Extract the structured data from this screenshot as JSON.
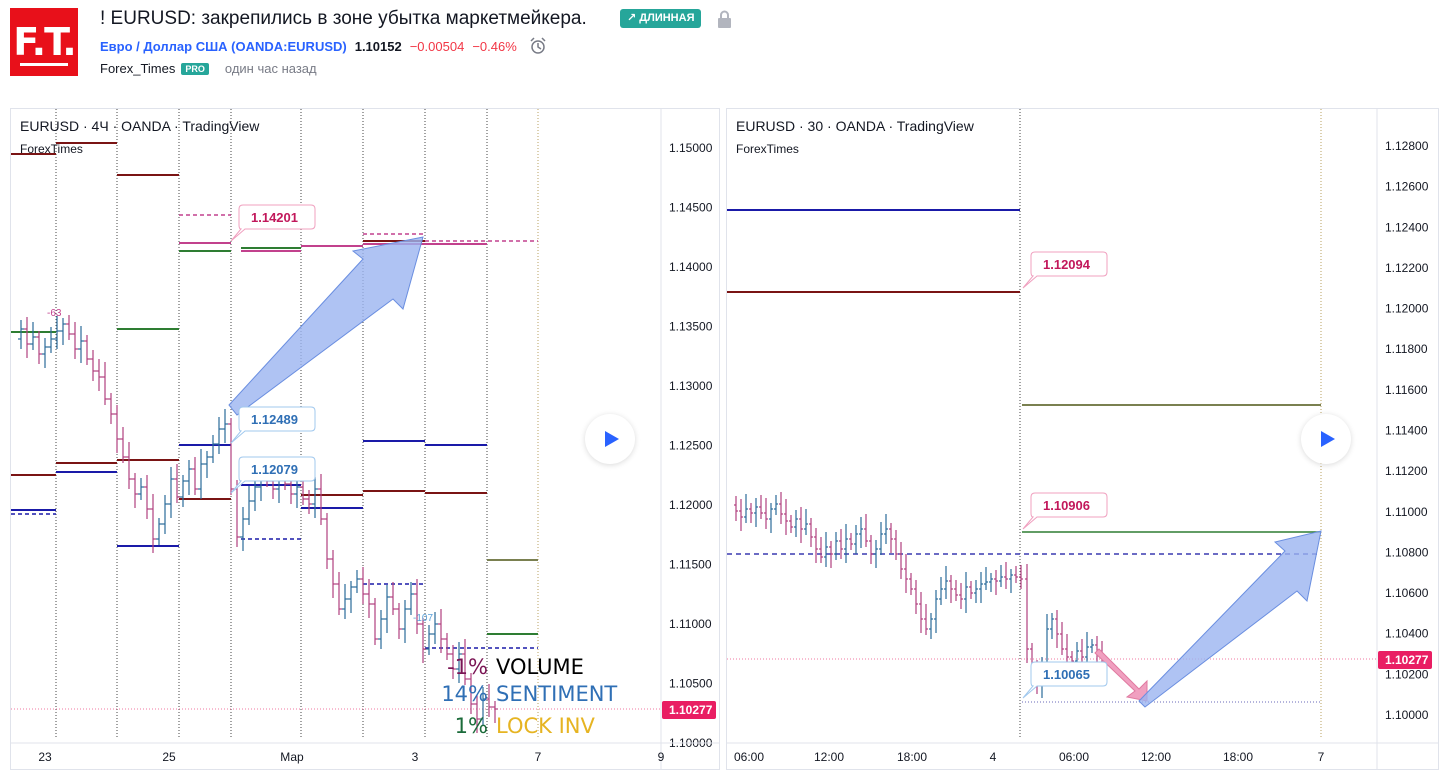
{
  "header": {
    "logo_text": "F.T.",
    "title": "! EURUSD: закрепились в зоне убытка маркетмейкера.",
    "direction_badge": "↗ ДЛИННАЯ",
    "symbol_link": "Евро / Доллар США (OANDA:EURUSD)",
    "price": "1.10152",
    "change": "−0.00504",
    "change_pct": "−0.46%",
    "author": "Forex_Times",
    "author_badge": "PRO",
    "published": "один час назад"
  },
  "colors": {
    "up": "#2a6b9a",
    "down": "#b0407e",
    "navy": "#1a1aa8",
    "maroon": "#7a1414",
    "green": "#2e7d32",
    "magenta": "#c2418d",
    "arrow_fill": "#9bb4f0",
    "price_tag": "#e91e63"
  },
  "charts": [
    {
      "legend": "EURUSD · 4Ч · OANDA · TradingView",
      "author": "ForexTimes",
      "price_axis": [
        "1.15000",
        "1.14500",
        "1.14000",
        "1.13500",
        "1.13000",
        "1.12500",
        "1.12000",
        "1.11500",
        "1.11000",
        "1.10500",
        "1.10000"
      ],
      "time_axis": [
        "23",
        "25",
        "Мар",
        "3",
        "7",
        "9"
      ],
      "current_price": "1.10277",
      "callouts": [
        "1.14201",
        "1.12489",
        "1.12079"
      ],
      "volume_markers": [
        "-63",
        "-107"
      ],
      "stats": [
        {
          "pct": "-1%",
          "label": "VOLUME",
          "pct_color": "#7a1454",
          "label_color": "#000000"
        },
        {
          "pct": "14%",
          "label": "SENTIMENT",
          "pct_color": "#2f6fb5",
          "label_color": "#2f6fb5"
        },
        {
          "pct": "1%",
          "label": "LOCK INV",
          "pct_color": "#1b6b3a",
          "label_color": "#e6b422"
        }
      ]
    },
    {
      "legend": "EURUSD · 30 · OANDA · TradingView",
      "author": "ForexTimes",
      "price_axis": [
        "1.12800",
        "1.12600",
        "1.12400",
        "1.12200",
        "1.12000",
        "1.11800",
        "1.11600",
        "1.11400",
        "1.11200",
        "1.11000",
        "1.10800",
        "1.10600",
        "1.10400",
        "1.10200",
        "1.10000"
      ],
      "time_axis": [
        "06:00",
        "12:00",
        "18:00",
        "4",
        "06:00",
        "12:00",
        "18:00",
        "7"
      ],
      "current_price": "1.10277",
      "callouts": [
        "1.12094",
        "1.10906",
        "1.10065"
      ]
    }
  ]
}
